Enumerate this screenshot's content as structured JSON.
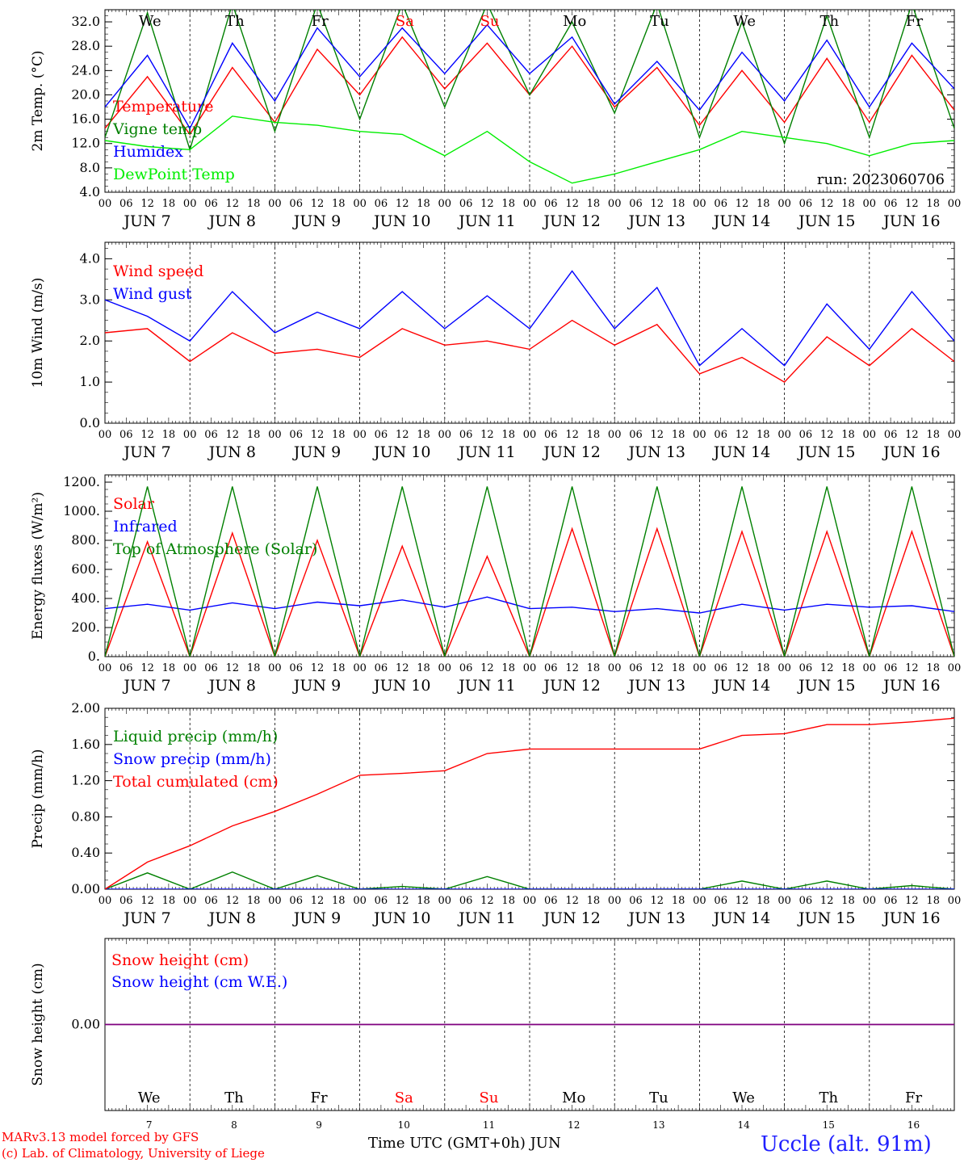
{
  "run_label": "run: 2023060706",
  "days": [
    {
      "abbr": "We",
      "date": "7",
      "weekend": false
    },
    {
      "abbr": "Th",
      "date": "8",
      "weekend": false
    },
    {
      "abbr": "Fr",
      "date": "9",
      "weekend": false
    },
    {
      "abbr": "Sa",
      "date": "10",
      "weekend": true
    },
    {
      "abbr": "Su",
      "date": "11",
      "weekend": true
    },
    {
      "abbr": "Mo",
      "date": "12",
      "weekend": false
    },
    {
      "abbr": "Tu",
      "date": "13",
      "weekend": false
    },
    {
      "abbr": "We",
      "date": "14",
      "weekend": false
    },
    {
      "abbr": "Th",
      "date": "15",
      "weekend": false
    },
    {
      "abbr": "Fr",
      "date": "16",
      "weekend": false
    }
  ],
  "month_label": "JUN",
  "hour_labels": [
    "00",
    "06",
    "12",
    "18"
  ],
  "final_hour_label": "00",
  "footer": {
    "model_line1": "MARv3.13 model forced by GFS",
    "model_line2": "(c) Lab. of Climatology, University of Liege",
    "xaxis_title": "Time UTC (GMT+0h) JUN",
    "station": "Uccle (alt. 91m)"
  },
  "colors": {
    "red": "#ff0000",
    "green": "#008000",
    "blue": "#0000ff",
    "lightgreen": "#00ee00",
    "purple": "#7f007f",
    "weekend": "#ff0000"
  },
  "chart_data": [
    {
      "type": "line",
      "ylabel": "2m Temp. (°C)",
      "ylim": [
        4,
        34
      ],
      "yticks": [
        "4.0",
        "8.0",
        "12.0",
        "16.0",
        "20.0",
        "24.0",
        "28.0",
        "32.0"
      ],
      "x": [
        "06-07 00",
        "06-07 12",
        "06-08 00",
        "06-08 12",
        "06-09 00",
        "06-09 12",
        "06-10 00",
        "06-10 12",
        "06-11 00",
        "06-11 12",
        "06-12 00",
        "06-12 12",
        "06-13 00",
        "06-13 12",
        "06-14 00",
        "06-14 12",
        "06-15 00",
        "06-15 12",
        "06-16 00",
        "06-16 12",
        "06-17 00"
      ],
      "series": [
        {
          "name": "Temperature",
          "color": "#ff0000",
          "values": [
            14.5,
            23.0,
            13.5,
            24.5,
            15.5,
            27.5,
            20.0,
            29.5,
            21.0,
            28.5,
            20.0,
            28.0,
            18.0,
            24.5,
            15.0,
            24.0,
            15.5,
            26.0,
            15.5,
            26.5,
            17.5
          ]
        },
        {
          "name": "Vigne temp",
          "color": "#008000",
          "values": [
            13.0,
            33.5,
            11.0,
            35.0,
            14.0,
            35.0,
            16.0,
            35.0,
            18.0,
            35.0,
            20.0,
            32.0,
            17.0,
            35.0,
            13.0,
            32.0,
            12.0,
            33.0,
            13.0,
            35.0,
            14.5
          ]
        },
        {
          "name": "Humidex",
          "color": "#0000ff",
          "values": [
            18.0,
            26.5,
            14.5,
            28.5,
            19.0,
            31.0,
            23.0,
            31.0,
            23.5,
            31.5,
            23.5,
            29.5,
            18.5,
            25.5,
            17.5,
            27.0,
            19.0,
            29.0,
            18.0,
            28.5,
            21.0
          ]
        },
        {
          "name": "DewPoint Temp",
          "color": "#00ee00",
          "values": [
            12.5,
            11.5,
            11.0,
            16.5,
            15.5,
            15.0,
            14.0,
            13.5,
            10.0,
            14.0,
            9.0,
            5.5,
            7.0,
            9.0,
            11.0,
            14.0,
            13.0,
            12.0,
            10.0,
            12.0,
            12.5
          ]
        }
      ]
    },
    {
      "type": "line",
      "ylabel": "10m Wind (m/s)",
      "ylim": [
        0,
        4.4
      ],
      "yticks": [
        "0.0",
        "1.0",
        "2.0",
        "3.0",
        "4.0"
      ],
      "x": [
        "06-07 00",
        "06-07 12",
        "06-08 00",
        "06-08 12",
        "06-09 00",
        "06-09 12",
        "06-10 00",
        "06-10 12",
        "06-11 00",
        "06-11 12",
        "06-12 00",
        "06-12 12",
        "06-13 00",
        "06-13 12",
        "06-14 00",
        "06-14 12",
        "06-15 00",
        "06-15 12",
        "06-16 00",
        "06-16 12",
        "06-17 00"
      ],
      "series": [
        {
          "name": "Wind speed",
          "color": "#ff0000",
          "values": [
            2.2,
            2.3,
            1.5,
            2.2,
            1.7,
            1.8,
            1.6,
            2.3,
            1.9,
            2.0,
            1.8,
            2.5,
            1.9,
            2.4,
            1.2,
            1.6,
            1.0,
            2.1,
            1.4,
            2.3,
            1.5
          ]
        },
        {
          "name": "Wind gust",
          "color": "#0000ff",
          "values": [
            3.0,
            2.6,
            2.0,
            3.2,
            2.2,
            2.7,
            2.3,
            3.2,
            2.3,
            3.1,
            2.3,
            3.7,
            2.3,
            3.3,
            1.4,
            2.3,
            1.4,
            2.9,
            1.8,
            3.2,
            2.0
          ]
        }
      ]
    },
    {
      "type": "line",
      "ylabel": "Energy fluxes (W/m²)",
      "ylim": [
        0,
        1250
      ],
      "yticks": [
        "0.",
        "200.",
        "400.",
        "600.",
        "800.",
        "1000.",
        "1200."
      ],
      "x": [
        "06-07 00",
        "06-07 12",
        "06-08 00",
        "06-08 12",
        "06-09 00",
        "06-09 12",
        "06-10 00",
        "06-10 12",
        "06-11 00",
        "06-11 12",
        "06-12 00",
        "06-12 12",
        "06-13 00",
        "06-13 12",
        "06-14 00",
        "06-14 12",
        "06-15 00",
        "06-15 12",
        "06-16 00",
        "06-16 12",
        "06-17 00"
      ],
      "series": [
        {
          "name": "Solar",
          "color": "#ff0000",
          "values": [
            0,
            790,
            0,
            850,
            0,
            800,
            0,
            760,
            0,
            690,
            0,
            880,
            0,
            880,
            0,
            860,
            0,
            860,
            0,
            860,
            0
          ]
        },
        {
          "name": "Infrared",
          "color": "#0000ff",
          "values": [
            330,
            360,
            320,
            370,
            330,
            375,
            350,
            390,
            340,
            410,
            330,
            340,
            310,
            330,
            300,
            360,
            320,
            360,
            340,
            350,
            310
          ]
        },
        {
          "name": "Top of Atmosphere (Solar)",
          "color": "#008000",
          "values": [
            0,
            1170,
            0,
            1170,
            0,
            1170,
            0,
            1170,
            0,
            1170,
            0,
            1170,
            0,
            1170,
            0,
            1170,
            0,
            1170,
            0,
            1170,
            0
          ]
        }
      ]
    },
    {
      "type": "line",
      "ylabel": "Precip (mm/h)",
      "ylim": [
        0,
        2.0
      ],
      "yticks": [
        "0.00",
        "0.40",
        "0.80",
        "1.20",
        "1.60",
        "2.00"
      ],
      "x": [
        "06-07 00",
        "06-07 12",
        "06-08 00",
        "06-08 12",
        "06-09 00",
        "06-09 12",
        "06-10 00",
        "06-10 12",
        "06-11 00",
        "06-11 12",
        "06-12 00",
        "06-12 12",
        "06-13 00",
        "06-13 12",
        "06-14 00",
        "06-14 12",
        "06-15 00",
        "06-15 12",
        "06-16 00",
        "06-16 12",
        "06-17 00"
      ],
      "series": [
        {
          "name": "Liquid precip (mm/h)",
          "color": "#008000",
          "values": [
            0,
            0.18,
            0,
            0.19,
            0,
            0.15,
            0,
            0.03,
            0,
            0.14,
            0,
            0,
            0,
            0,
            0,
            0.09,
            0,
            0.09,
            0,
            0.04,
            0
          ]
        },
        {
          "name": "Snow precip (mm/h)",
          "color": "#0000ff",
          "values": [
            0,
            0,
            0,
            0,
            0,
            0,
            0,
            0,
            0,
            0,
            0,
            0,
            0,
            0,
            0,
            0,
            0,
            0,
            0,
            0,
            0
          ]
        },
        {
          "name": "Total cumulated (cm)",
          "color": "#ff0000",
          "values": [
            0,
            0.3,
            0.48,
            0.7,
            0.86,
            1.05,
            1.26,
            1.28,
            1.31,
            1.5,
            1.55,
            1.55,
            1.55,
            1.55,
            1.55,
            1.7,
            1.72,
            1.82,
            1.82,
            1.85,
            1.89
          ]
        }
      ]
    },
    {
      "type": "line",
      "ylabel": "Snow height (cm)",
      "ylim": [
        -1,
        1
      ],
      "yticks": [
        "0.00"
      ],
      "x": [
        "06-07 00",
        "06-17 00"
      ],
      "series": [
        {
          "name": "Snow height (cm)",
          "color": "#ff0000",
          "values": [
            0,
            0
          ]
        },
        {
          "name": "Snow height (cm W.E.)",
          "color": "#0000ff",
          "values": [
            0,
            0
          ]
        }
      ]
    }
  ]
}
